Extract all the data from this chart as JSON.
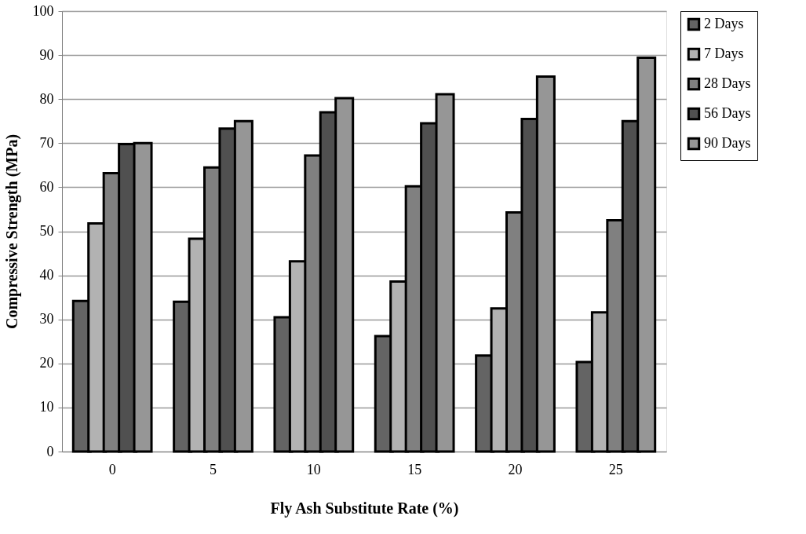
{
  "chart_data": {
    "type": "bar",
    "xlabel": "Fly Ash Substitute Rate (%)",
    "ylabel": "Compressive Strength (MPa)",
    "categories": [
      "0",
      "5",
      "10",
      "15",
      "20",
      "25"
    ],
    "series": [
      {
        "name": "2 Days",
        "color": "#646464",
        "values": [
          34.2,
          34.0,
          30.5,
          26.2,
          21.8,
          20.3
        ]
      },
      {
        "name": "7 Days",
        "color": "#b2b2b2",
        "values": [
          51.8,
          48.3,
          43.2,
          38.6,
          32.5,
          31.6
        ]
      },
      {
        "name": "28 Days",
        "color": "#808080",
        "values": [
          63.2,
          64.5,
          67.2,
          60.2,
          54.3,
          52.5
        ]
      },
      {
        "name": "56 Days",
        "color": "#505050",
        "values": [
          69.8,
          73.3,
          77.0,
          74.5,
          75.5,
          75.0
        ]
      },
      {
        "name": "90 Days",
        "color": "#969696",
        "values": [
          70.0,
          75.0,
          80.2,
          81.1,
          85.1,
          89.4
        ]
      }
    ],
    "ylim": [
      0,
      100
    ],
    "yticks": [
      0,
      10,
      20,
      30,
      40,
      50,
      60,
      70,
      80,
      90,
      100
    ],
    "grid": "y",
    "legend": "right"
  }
}
